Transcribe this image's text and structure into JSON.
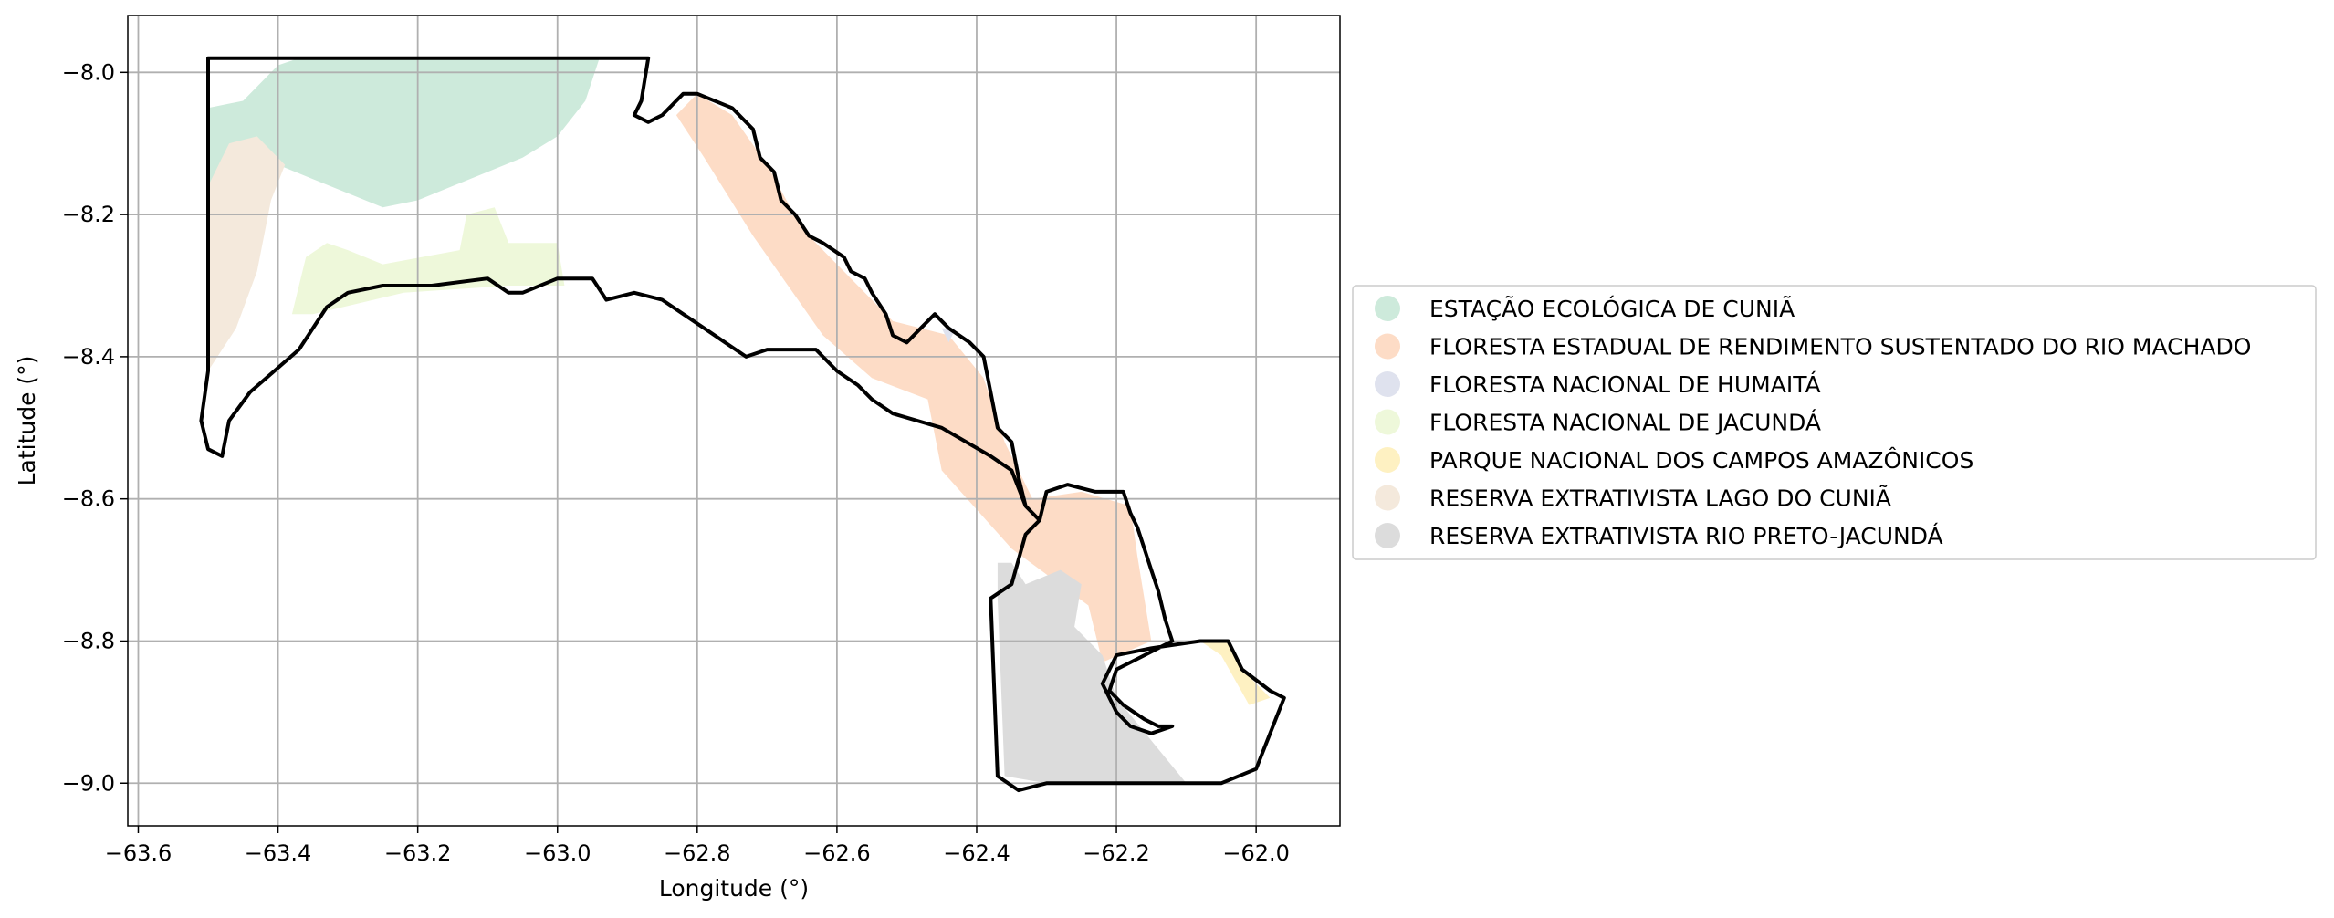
{
  "chart_data": {
    "type": "map",
    "title": "",
    "xlabel": "Longitude (°)",
    "ylabel": "Latitude (°)",
    "xlim": [
      -63.615,
      -61.88
    ],
    "ylim": [
      -9.06,
      -7.92
    ],
    "xticks": [
      -63.6,
      -63.4,
      -63.2,
      -63.0,
      -62.8,
      -62.6,
      -62.4,
      -62.2,
      -62.0
    ],
    "yticks": [
      -8.0,
      -8.2,
      -8.4,
      -8.6,
      -8.8,
      -9.0
    ],
    "xtick_labels": [
      "−63.6",
      "−63.4",
      "−63.2",
      "−63.0",
      "−62.8",
      "−62.6",
      "−62.4",
      "−62.2",
      "−62.0"
    ],
    "ytick_labels": [
      "−8.0",
      "−8.2",
      "−8.4",
      "−8.6",
      "−8.8",
      "−9.0"
    ],
    "grid": true,
    "legend_position": "right",
    "series": [
      {
        "name": "ESTAÇÃO ECOLÓGICA DE CUNIÃ",
        "color": "#cdeadb",
        "polygon": [
          [
            -63.5,
            -8.16
          ],
          [
            -63.5,
            -8.05
          ],
          [
            -63.45,
            -8.04
          ],
          [
            -63.4,
            -7.99
          ],
          [
            -63.37,
            -7.98
          ],
          [
            -62.94,
            -7.98
          ],
          [
            -62.96,
            -8.04
          ],
          [
            -63.0,
            -8.09
          ],
          [
            -63.05,
            -8.12
          ],
          [
            -63.1,
            -8.14
          ],
          [
            -63.15,
            -8.16
          ],
          [
            -63.2,
            -8.18
          ],
          [
            -63.25,
            -8.19
          ],
          [
            -63.3,
            -8.17
          ],
          [
            -63.35,
            -8.15
          ],
          [
            -63.4,
            -8.13
          ],
          [
            -63.45,
            -8.14
          ]
        ]
      },
      {
        "name": "FLORESTA ESTADUAL DE RENDIMENTO SUSTENTADO DO RIO MACHADO",
        "color": "#fddcc6",
        "polygon": [
          [
            -62.83,
            -8.06
          ],
          [
            -62.8,
            -8.03
          ],
          [
            -62.75,
            -8.06
          ],
          [
            -62.7,
            -8.13
          ],
          [
            -62.65,
            -8.22
          ],
          [
            -62.58,
            -8.29
          ],
          [
            -62.52,
            -8.35
          ],
          [
            -62.44,
            -8.37
          ],
          [
            -62.39,
            -8.43
          ],
          [
            -62.36,
            -8.52
          ],
          [
            -62.32,
            -8.6
          ],
          [
            -62.25,
            -8.59
          ],
          [
            -62.18,
            -8.61
          ],
          [
            -62.17,
            -8.68
          ],
          [
            -62.15,
            -8.8
          ],
          [
            -62.22,
            -8.83
          ],
          [
            -62.24,
            -8.75
          ],
          [
            -62.35,
            -8.67
          ],
          [
            -62.45,
            -8.56
          ],
          [
            -62.47,
            -8.46
          ],
          [
            -62.55,
            -8.43
          ],
          [
            -62.62,
            -8.37
          ],
          [
            -62.72,
            -8.23
          ],
          [
            -62.79,
            -8.12
          ]
        ]
      },
      {
        "name": "FLORESTA NACIONAL DE HUMAITÁ",
        "color": "#dfe2ee",
        "polygon": [
          [
            -62.45,
            -8.36
          ],
          [
            -62.43,
            -8.36
          ],
          [
            -62.44,
            -8.38
          ]
        ]
      },
      {
        "name": "FLORESTA NACIONAL DE JACUNDÁ",
        "color": "#eef8da",
        "polygon": [
          [
            -63.36,
            -8.26
          ],
          [
            -63.33,
            -8.24
          ],
          [
            -63.3,
            -8.25
          ],
          [
            -63.25,
            -8.27
          ],
          [
            -63.14,
            -8.25
          ],
          [
            -63.13,
            -8.2
          ],
          [
            -63.09,
            -8.19
          ],
          [
            -63.07,
            -8.24
          ],
          [
            -63.0,
            -8.24
          ],
          [
            -62.99,
            -8.3
          ],
          [
            -63.07,
            -8.3
          ],
          [
            -63.22,
            -8.31
          ],
          [
            -63.35,
            -8.34
          ],
          [
            -63.38,
            -8.34
          ]
        ]
      },
      {
        "name": "PARQUE NACIONAL DOS CAMPOS AMAZÔNICOS",
        "color": "#fef1c2",
        "polygon": [
          [
            -62.08,
            -8.8
          ],
          [
            -62.04,
            -8.8
          ],
          [
            -62.02,
            -8.84
          ],
          [
            -61.98,
            -8.88
          ],
          [
            -62.01,
            -8.89
          ],
          [
            -62.05,
            -8.82
          ]
        ]
      },
      {
        "name": "RESERVA EXTRATIVISTA LAGO DO CUNIÃ",
        "color": "#f4e9dc",
        "polygon": [
          [
            -63.5,
            -8.16
          ],
          [
            -63.47,
            -8.1
          ],
          [
            -63.43,
            -8.09
          ],
          [
            -63.39,
            -8.13
          ],
          [
            -63.41,
            -8.18
          ],
          [
            -63.43,
            -8.28
          ],
          [
            -63.46,
            -8.36
          ],
          [
            -63.5,
            -8.42
          ]
        ]
      },
      {
        "name": "RESERVA EXTRATIVISTA RIO PRETO-JACUNDÁ",
        "color": "#dcdcdc",
        "polygon": [
          [
            -62.37,
            -8.69
          ],
          [
            -62.37,
            -8.74
          ],
          [
            -62.36,
            -8.99
          ],
          [
            -62.3,
            -9.0
          ],
          [
            -62.2,
            -9.0
          ],
          [
            -62.1,
            -9.0
          ],
          [
            -62.2,
            -8.88
          ],
          [
            -62.22,
            -8.82
          ],
          [
            -62.26,
            -8.78
          ],
          [
            -62.25,
            -8.72
          ],
          [
            -62.28,
            -8.7
          ],
          [
            -62.33,
            -8.72
          ],
          [
            -62.35,
            -8.69
          ]
        ]
      }
    ],
    "boundary": [
      [
        -63.5,
        -7.98
      ],
      [
        -62.87,
        -7.98
      ],
      [
        -62.88,
        -8.04
      ],
      [
        -62.89,
        -8.06
      ],
      [
        -62.87,
        -8.07
      ],
      [
        -62.85,
        -8.06
      ],
      [
        -62.82,
        -8.03
      ],
      [
        -62.8,
        -8.03
      ],
      [
        -62.75,
        -8.05
      ],
      [
        -62.72,
        -8.08
      ],
      [
        -62.71,
        -8.12
      ],
      [
        -62.69,
        -8.14
      ],
      [
        -62.68,
        -8.18
      ],
      [
        -62.66,
        -8.2
      ],
      [
        -62.64,
        -8.23
      ],
      [
        -62.62,
        -8.24
      ],
      [
        -62.59,
        -8.26
      ],
      [
        -62.58,
        -8.28
      ],
      [
        -62.56,
        -8.29
      ],
      [
        -62.55,
        -8.31
      ],
      [
        -62.53,
        -8.34
      ],
      [
        -62.52,
        -8.37
      ],
      [
        -62.5,
        -8.38
      ],
      [
        -62.48,
        -8.36
      ],
      [
        -62.46,
        -8.34
      ],
      [
        -62.44,
        -8.36
      ],
      [
        -62.41,
        -8.38
      ],
      [
        -62.39,
        -8.4
      ],
      [
        -62.38,
        -8.45
      ],
      [
        -62.37,
        -8.5
      ],
      [
        -62.35,
        -8.52
      ],
      [
        -62.34,
        -8.57
      ],
      [
        -62.33,
        -8.61
      ],
      [
        -62.31,
        -8.63
      ],
      [
        -62.3,
        -8.59
      ],
      [
        -62.27,
        -8.58
      ],
      [
        -62.23,
        -8.59
      ],
      [
        -62.19,
        -8.59
      ],
      [
        -62.18,
        -8.62
      ],
      [
        -62.17,
        -8.64
      ],
      [
        -62.16,
        -8.67
      ],
      [
        -62.15,
        -8.7
      ],
      [
        -62.14,
        -8.73
      ],
      [
        -62.13,
        -8.77
      ],
      [
        -62.12,
        -8.8
      ],
      [
        -62.16,
        -8.82
      ],
      [
        -62.2,
        -8.84
      ],
      [
        -62.21,
        -8.87
      ],
      [
        -62.19,
        -8.89
      ],
      [
        -62.16,
        -8.91
      ],
      [
        -62.14,
        -8.92
      ],
      [
        -62.12,
        -8.92
      ],
      [
        -62.15,
        -8.93
      ],
      [
        -62.18,
        -8.92
      ],
      [
        -62.2,
        -8.9
      ],
      [
        -62.22,
        -8.86
      ],
      [
        -62.2,
        -8.82
      ],
      [
        -62.15,
        -8.81
      ],
      [
        -62.08,
        -8.8
      ],
      [
        -62.04,
        -8.8
      ],
      [
        -62.02,
        -8.84
      ],
      [
        -61.98,
        -8.87
      ],
      [
        -61.96,
        -8.88
      ],
      [
        -62.0,
        -8.98
      ],
      [
        -62.05,
        -9.0
      ],
      [
        -62.1,
        -9.0
      ],
      [
        -62.2,
        -9.0
      ],
      [
        -62.3,
        -9.0
      ],
      [
        -62.34,
        -9.01
      ],
      [
        -62.37,
        -8.99
      ],
      [
        -62.38,
        -8.74
      ],
      [
        -62.35,
        -8.72
      ],
      [
        -62.33,
        -8.65
      ],
      [
        -62.31,
        -8.63
      ],
      [
        -62.33,
        -8.61
      ],
      [
        -62.35,
        -8.56
      ],
      [
        -62.38,
        -8.54
      ],
      [
        -62.45,
        -8.5
      ],
      [
        -62.52,
        -8.48
      ],
      [
        -62.55,
        -8.46
      ],
      [
        -62.57,
        -8.44
      ],
      [
        -62.6,
        -8.42
      ],
      [
        -62.63,
        -8.39
      ],
      [
        -62.7,
        -8.39
      ],
      [
        -62.73,
        -8.4
      ],
      [
        -62.76,
        -8.38
      ],
      [
        -62.79,
        -8.36
      ],
      [
        -62.82,
        -8.34
      ],
      [
        -62.85,
        -8.32
      ],
      [
        -62.89,
        -8.31
      ],
      [
        -62.93,
        -8.32
      ],
      [
        -62.95,
        -8.29
      ],
      [
        -63.0,
        -8.29
      ],
      [
        -63.05,
        -8.31
      ],
      [
        -63.07,
        -8.31
      ],
      [
        -63.1,
        -8.29
      ],
      [
        -63.18,
        -8.3
      ],
      [
        -63.25,
        -8.3
      ],
      [
        -63.3,
        -8.31
      ],
      [
        -63.33,
        -8.33
      ],
      [
        -63.37,
        -8.39
      ],
      [
        -63.44,
        -8.45
      ],
      [
        -63.47,
        -8.49
      ],
      [
        -63.48,
        -8.54
      ],
      [
        -63.5,
        -8.53
      ],
      [
        -63.51,
        -8.49
      ],
      [
        -63.5,
        -8.42
      ],
      [
        -63.5,
        -8.06
      ]
    ]
  }
}
